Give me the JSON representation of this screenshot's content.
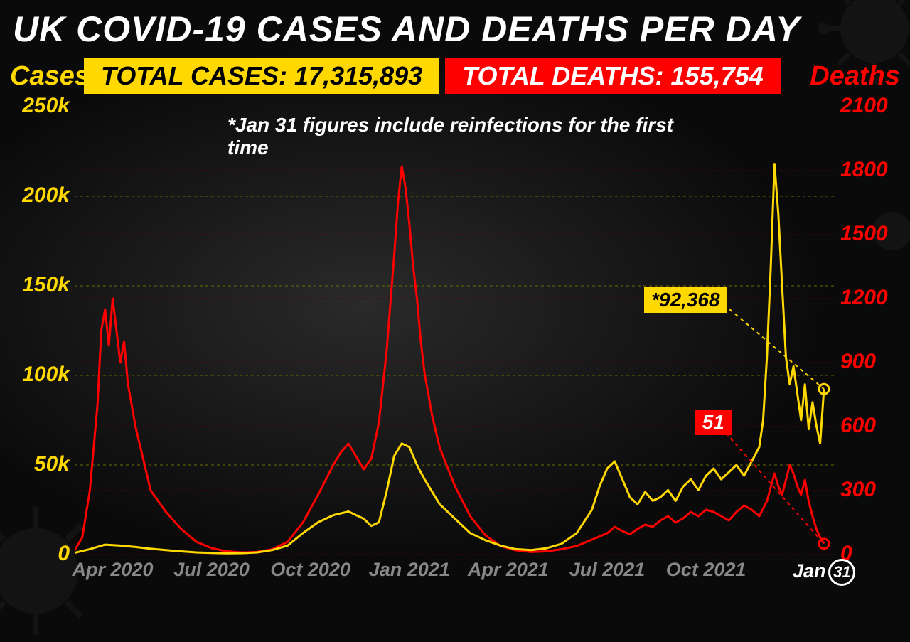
{
  "title": "UK COVID-19 CASES AND DEATHS PER DAY",
  "axis_labels": {
    "left": "Cases",
    "right": "Deaths"
  },
  "badges": {
    "cases": "TOTAL CASES: 17,315,893",
    "deaths": "TOTAL DEATHS: 155,754"
  },
  "note": "*Jan 31 figures include reinfections for the first time",
  "colors": {
    "background": "#0a0a0a",
    "cases": "#ffd800",
    "deaths": "#ff0000",
    "text": "#ffffff",
    "tick": "#888888",
    "grid_cases": "#6b6b00",
    "grid_deaths": "#5a0000"
  },
  "chart": {
    "type": "dual-axis-line",
    "left_axis": {
      "min": 0,
      "max": 250000,
      "ticks": [
        0,
        50000,
        100000,
        150000,
        200000,
        250000
      ],
      "tick_labels": [
        "0",
        "50k",
        "100k",
        "150k",
        "200k",
        "250k"
      ]
    },
    "right_axis": {
      "min": 0,
      "max": 2100,
      "ticks": [
        0,
        300,
        600,
        900,
        1200,
        1500,
        1800,
        2100
      ],
      "tick_labels": [
        "0",
        "300",
        "600",
        "900",
        "1200",
        "1500",
        "1800",
        "2100"
      ]
    },
    "x_ticks": [
      {
        "label": "Apr 2020",
        "t": 0.05
      },
      {
        "label": "Jul 2020",
        "t": 0.18
      },
      {
        "label": "Oct 2020",
        "t": 0.31
      },
      {
        "label": "Jan 2021",
        "t": 0.44
      },
      {
        "label": "Apr 2021",
        "t": 0.57
      },
      {
        "label": "Jul 2021",
        "t": 0.7
      },
      {
        "label": "Oct 2021",
        "t": 0.83
      }
    ],
    "end_date": {
      "month": "Jan",
      "day": "31",
      "t": 0.985
    },
    "cases_series": [
      [
        0.0,
        1000
      ],
      [
        0.02,
        3000
      ],
      [
        0.04,
        5500
      ],
      [
        0.06,
        5000
      ],
      [
        0.08,
        4200
      ],
      [
        0.1,
        3200
      ],
      [
        0.12,
        2500
      ],
      [
        0.14,
        1800
      ],
      [
        0.16,
        1200
      ],
      [
        0.18,
        900
      ],
      [
        0.2,
        700
      ],
      [
        0.22,
        800
      ],
      [
        0.24,
        1200
      ],
      [
        0.26,
        2500
      ],
      [
        0.28,
        5000
      ],
      [
        0.3,
        12000
      ],
      [
        0.32,
        18000
      ],
      [
        0.34,
        22000
      ],
      [
        0.36,
        24000
      ],
      [
        0.38,
        20000
      ],
      [
        0.39,
        16000
      ],
      [
        0.4,
        18000
      ],
      [
        0.41,
        35000
      ],
      [
        0.42,
        55000
      ],
      [
        0.43,
        62000
      ],
      [
        0.44,
        60000
      ],
      [
        0.45,
        50000
      ],
      [
        0.46,
        42000
      ],
      [
        0.47,
        35000
      ],
      [
        0.48,
        28000
      ],
      [
        0.5,
        20000
      ],
      [
        0.52,
        12000
      ],
      [
        0.54,
        8000
      ],
      [
        0.56,
        5000
      ],
      [
        0.58,
        3000
      ],
      [
        0.6,
        2500
      ],
      [
        0.62,
        3500
      ],
      [
        0.64,
        6000
      ],
      [
        0.66,
        12000
      ],
      [
        0.68,
        25000
      ],
      [
        0.69,
        38000
      ],
      [
        0.7,
        48000
      ],
      [
        0.71,
        52000
      ],
      [
        0.72,
        42000
      ],
      [
        0.73,
        32000
      ],
      [
        0.74,
        28000
      ],
      [
        0.75,
        35000
      ],
      [
        0.76,
        30000
      ],
      [
        0.77,
        32000
      ],
      [
        0.78,
        36000
      ],
      [
        0.79,
        30000
      ],
      [
        0.8,
        38000
      ],
      [
        0.81,
        42000
      ],
      [
        0.82,
        36000
      ],
      [
        0.83,
        44000
      ],
      [
        0.84,
        48000
      ],
      [
        0.85,
        42000
      ],
      [
        0.86,
        46000
      ],
      [
        0.87,
        50000
      ],
      [
        0.88,
        44000
      ],
      [
        0.89,
        52000
      ],
      [
        0.9,
        60000
      ],
      [
        0.905,
        75000
      ],
      [
        0.91,
        110000
      ],
      [
        0.915,
        160000
      ],
      [
        0.92,
        218000
      ],
      [
        0.925,
        190000
      ],
      [
        0.93,
        150000
      ],
      [
        0.935,
        110000
      ],
      [
        0.94,
        95000
      ],
      [
        0.945,
        105000
      ],
      [
        0.95,
        90000
      ],
      [
        0.955,
        75000
      ],
      [
        0.96,
        95000
      ],
      [
        0.965,
        70000
      ],
      [
        0.97,
        85000
      ],
      [
        0.975,
        72000
      ],
      [
        0.98,
        62000
      ],
      [
        0.985,
        92368
      ]
    ],
    "deaths_series": [
      [
        0.0,
        20
      ],
      [
        0.01,
        80
      ],
      [
        0.02,
        300
      ],
      [
        0.03,
        700
      ],
      [
        0.035,
        1050
      ],
      [
        0.04,
        1150
      ],
      [
        0.045,
        980
      ],
      [
        0.05,
        1200
      ],
      [
        0.055,
        1050
      ],
      [
        0.06,
        900
      ],
      [
        0.065,
        1000
      ],
      [
        0.07,
        800
      ],
      [
        0.075,
        700
      ],
      [
        0.08,
        600
      ],
      [
        0.09,
        450
      ],
      [
        0.1,
        300
      ],
      [
        0.12,
        200
      ],
      [
        0.14,
        120
      ],
      [
        0.16,
        60
      ],
      [
        0.18,
        30
      ],
      [
        0.2,
        15
      ],
      [
        0.22,
        10
      ],
      [
        0.24,
        12
      ],
      [
        0.26,
        25
      ],
      [
        0.28,
        60
      ],
      [
        0.3,
        150
      ],
      [
        0.32,
        280
      ],
      [
        0.33,
        350
      ],
      [
        0.34,
        420
      ],
      [
        0.35,
        480
      ],
      [
        0.36,
        520
      ],
      [
        0.37,
        460
      ],
      [
        0.38,
        400
      ],
      [
        0.39,
        450
      ],
      [
        0.4,
        620
      ],
      [
        0.41,
        950
      ],
      [
        0.42,
        1400
      ],
      [
        0.425,
        1650
      ],
      [
        0.43,
        1820
      ],
      [
        0.435,
        1720
      ],
      [
        0.44,
        1550
      ],
      [
        0.445,
        1350
      ],
      [
        0.45,
        1200
      ],
      [
        0.455,
        1000
      ],
      [
        0.46,
        850
      ],
      [
        0.47,
        650
      ],
      [
        0.48,
        500
      ],
      [
        0.5,
        320
      ],
      [
        0.52,
        180
      ],
      [
        0.54,
        90
      ],
      [
        0.56,
        40
      ],
      [
        0.58,
        20
      ],
      [
        0.6,
        12
      ],
      [
        0.62,
        15
      ],
      [
        0.64,
        25
      ],
      [
        0.66,
        40
      ],
      [
        0.68,
        70
      ],
      [
        0.7,
        100
      ],
      [
        0.71,
        130
      ],
      [
        0.72,
        110
      ],
      [
        0.73,
        95
      ],
      [
        0.74,
        120
      ],
      [
        0.75,
        140
      ],
      [
        0.76,
        130
      ],
      [
        0.77,
        160
      ],
      [
        0.78,
        180
      ],
      [
        0.79,
        150
      ],
      [
        0.8,
        170
      ],
      [
        0.81,
        200
      ],
      [
        0.82,
        180
      ],
      [
        0.83,
        210
      ],
      [
        0.84,
        200
      ],
      [
        0.85,
        180
      ],
      [
        0.86,
        160
      ],
      [
        0.87,
        200
      ],
      [
        0.88,
        230
      ],
      [
        0.89,
        210
      ],
      [
        0.9,
        180
      ],
      [
        0.91,
        250
      ],
      [
        0.92,
        380
      ],
      [
        0.925,
        320
      ],
      [
        0.93,
        280
      ],
      [
        0.935,
        350
      ],
      [
        0.94,
        420
      ],
      [
        0.945,
        380
      ],
      [
        0.95,
        320
      ],
      [
        0.955,
        280
      ],
      [
        0.96,
        350
      ],
      [
        0.965,
        250
      ],
      [
        0.97,
        180
      ],
      [
        0.975,
        120
      ],
      [
        0.98,
        80
      ],
      [
        0.985,
        51
      ]
    ],
    "callouts": {
      "cases": {
        "label": "*92,368",
        "box_t": 0.8,
        "box_y_cases": 142000,
        "end_t": 0.985,
        "end_value": 92368
      },
      "deaths": {
        "label": "51",
        "box_t": 0.825,
        "box_y_deaths": 620,
        "end_t": 0.985,
        "end_value": 51
      }
    },
    "line_width": 3
  }
}
